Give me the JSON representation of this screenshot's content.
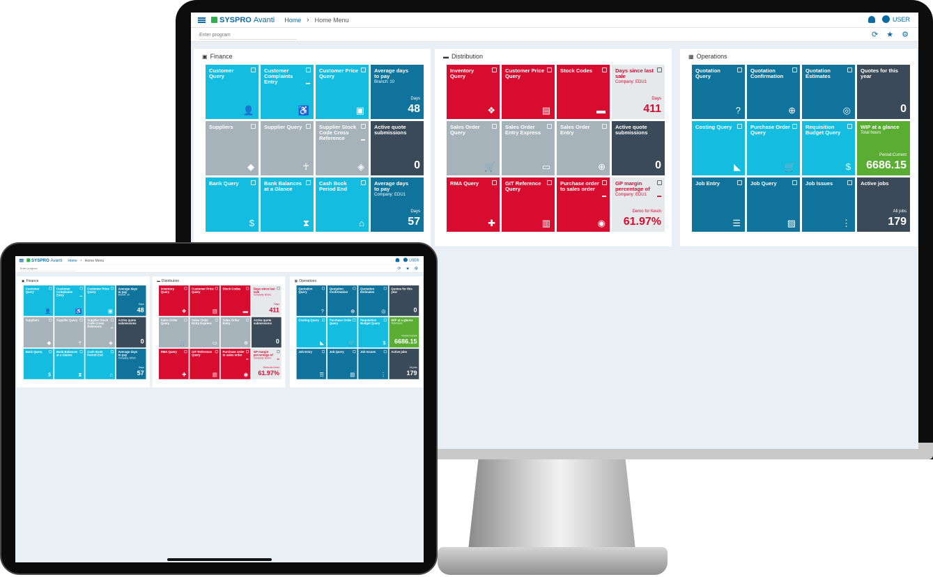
{
  "app": {
    "logo_brand": "SYSPRO",
    "logo_product": "Avanti",
    "breadcrumb_home": "Home",
    "breadcrumb_current": "Home Menu",
    "user_label": "USER",
    "program_placeholder": "Enter program"
  },
  "colors": {
    "cyan": "#14bde0",
    "grey": "#a7b3bb",
    "dark": "#3b4a58",
    "teal": "#0f739c",
    "red": "#d80c2f",
    "light": "#e6e9ec",
    "green": "#5aad33"
  },
  "panels": [
    {
      "title": "Finance",
      "icon": "wallet-icon",
      "tiles": [
        {
          "label": "Customer Query",
          "color": "cyan",
          "icon": "person-icon"
        },
        {
          "label": "Customer Complaints Entry",
          "color": "cyan",
          "icon": "accessible-icon",
          "dots": true
        },
        {
          "label": "Customer Price Query",
          "color": "cyan",
          "icon": "wallet-icon"
        },
        {
          "label": "Average days to pay",
          "sub": "Branch: 10",
          "color": "teal",
          "caption": "Days",
          "value": "48"
        },
        {
          "label": "Suppliers",
          "color": "grey",
          "icon": "map-pin-icon"
        },
        {
          "label": "Supplier Query",
          "color": "grey",
          "icon": "accessibility-icon"
        },
        {
          "label": "Supplier Stock Code Cross Reference",
          "color": "grey",
          "icon": "layers-icon",
          "dots": true
        },
        {
          "label": "Active quote submissions",
          "color": "dark",
          "value": "0"
        },
        {
          "label": "Bank Query",
          "color": "cyan",
          "icon": "dollar-icon"
        },
        {
          "label": "Bank Balances at a Glance",
          "color": "cyan",
          "icon": "hourglass-icon"
        },
        {
          "label": "Cash Book Period End",
          "color": "cyan",
          "icon": "bank-icon"
        },
        {
          "label": "Average days to pay",
          "sub": "Company: EDU1",
          "color": "teal",
          "caption": "Days",
          "value": "57"
        }
      ]
    },
    {
      "title": "Distribution",
      "icon": "truck-icon",
      "tiles": [
        {
          "label": "Inventory Query",
          "color": "red",
          "icon": "widgets-icon"
        },
        {
          "label": "Customer Price Query",
          "color": "red",
          "icon": "cards-icon"
        },
        {
          "label": "Stock Codes",
          "color": "red",
          "icon": "card-icon"
        },
        {
          "label": "Days since last sale",
          "sub": "Company: EDU1",
          "color": "light",
          "caption": "Days",
          "value": "411"
        },
        {
          "label": "Sales Order Query",
          "color": "grey",
          "icon": "cart-icon"
        },
        {
          "label": "Sales Order Entry Express",
          "color": "grey",
          "icon": "tablet-icon"
        },
        {
          "label": "Sales Order Entry",
          "color": "grey",
          "icon": "add-cart-icon"
        },
        {
          "label": "Active quote submissions",
          "color": "dark",
          "value": "0"
        },
        {
          "label": "RMA Query",
          "color": "red",
          "icon": "medkit-icon"
        },
        {
          "label": "GIT Reference Query",
          "color": "red",
          "icon": "train-icon"
        },
        {
          "label": "Purchase order to sales order",
          "color": "red",
          "icon": "eye-icon",
          "dots": true
        },
        {
          "label": "GP margin percentage of",
          "sub": "Company: EDU1",
          "color": "light",
          "caption": "Demo for Kevin",
          "value": "61.97%",
          "dots": true
        }
      ]
    },
    {
      "title": "Operations",
      "icon": "dashboard-icon",
      "tiles": [
        {
          "label": "Quotation Query",
          "color": "teal",
          "icon": "help-icon"
        },
        {
          "label": "Quotation Confirmation",
          "color": "teal",
          "icon": "add-location-icon"
        },
        {
          "label": "Quotation Estimates",
          "color": "teal",
          "icon": "signal-icon"
        },
        {
          "label": "Quotes for this year",
          "color": "dark",
          "value": "0"
        },
        {
          "label": "Costing Query",
          "color": "cyan",
          "icon": "tag-icon"
        },
        {
          "label": "Purchase Order Query",
          "color": "cyan",
          "icon": "cart-icon"
        },
        {
          "label": "Requisition Budget Query",
          "color": "cyan",
          "icon": "money-icon"
        },
        {
          "label": "WIP at a glance",
          "sub": "Total hours",
          "color": "green",
          "caption": "Period:Current",
          "value": "6686.15"
        },
        {
          "label": "Job Entry",
          "color": "teal",
          "icon": "list-icon"
        },
        {
          "label": "Job Query",
          "color": "teal",
          "icon": "image-icon"
        },
        {
          "label": "Job Issues",
          "color": "teal",
          "icon": "traffic-icon"
        },
        {
          "label": "Active jobs",
          "color": "dark",
          "caption": "All jobs",
          "value": "179"
        }
      ]
    }
  ]
}
